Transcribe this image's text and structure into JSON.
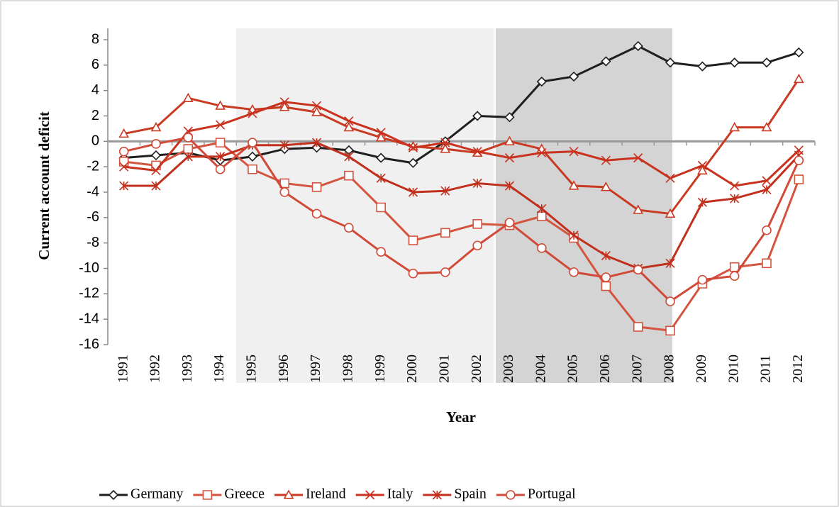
{
  "chart_data": {
    "type": "line",
    "y_axis_label": "Current account deficit",
    "x_axis_label": "Year",
    "categories": [
      "1991",
      "1992",
      "1993",
      "1994",
      "1995",
      "1996",
      "1997",
      "1998",
      "1999",
      "2000",
      "2001",
      "2002",
      "2003",
      "2004",
      "2005",
      "2006",
      "2007",
      "2008",
      "2009",
      "2010",
      "2011",
      "2012"
    ],
    "ylim": [
      -16,
      8
    ],
    "yticks": [
      -16,
      -14,
      -12,
      -10,
      -8,
      -6,
      -4,
      -2,
      0,
      2,
      4,
      6,
      8
    ],
    "grid": false,
    "legend": "bottom",
    "series": [
      {
        "name": "Germany",
        "color": "#1f1f1f",
        "marker": "diamond",
        "values": [
          -1.3,
          -1.1,
          -0.9,
          -1.5,
          -1.2,
          -0.6,
          -0.5,
          -0.7,
          -1.3,
          -1.7,
          0.0,
          2.0,
          1.9,
          4.7,
          5.1,
          6.3,
          7.5,
          6.2,
          5.9,
          6.2,
          6.2,
          7.0
        ]
      },
      {
        "name": "Greece",
        "color": "#d4553f",
        "marker": "square",
        "values": [
          -1.6,
          -1.9,
          -0.6,
          -0.1,
          -2.2,
          -3.3,
          -3.6,
          -2.7,
          -5.2,
          -7.8,
          -7.2,
          -6.5,
          -6.6,
          -5.9,
          -7.6,
          -11.4,
          -14.6,
          -14.9,
          -11.2,
          -9.9,
          -9.6,
          -3.0
        ]
      },
      {
        "name": "Ireland",
        "color": "#c93a22",
        "marker": "triangle",
        "values": [
          0.6,
          1.1,
          3.4,
          2.8,
          2.5,
          2.7,
          2.3,
          1.1,
          0.3,
          -0.4,
          -0.6,
          -0.9,
          0.0,
          -0.6,
          -3.5,
          -3.6,
          -5.4,
          -5.7,
          -2.3,
          1.1,
          1.1,
          4.9
        ]
      },
      {
        "name": "Italy",
        "color": "#c8321e",
        "marker": "x",
        "values": [
          -2.0,
          -2.3,
          0.8,
          1.3,
          2.2,
          3.1,
          2.8,
          1.6,
          0.7,
          -0.5,
          -0.1,
          -0.8,
          -1.3,
          -0.9,
          -0.8,
          -1.5,
          -1.3,
          -2.9,
          -1.9,
          -3.5,
          -3.1,
          -0.7
        ]
      },
      {
        "name": "Spain",
        "color": "#c0301c",
        "marker": "star",
        "values": [
          -3.5,
          -3.5,
          -1.2,
          -1.2,
          -0.3,
          -0.3,
          -0.1,
          -1.2,
          -2.9,
          -4.0,
          -3.9,
          -3.3,
          -3.5,
          -5.3,
          -7.4,
          -9.0,
          -10.0,
          -9.6,
          -4.8,
          -4.5,
          -3.8,
          -1.1
        ]
      },
      {
        "name": "Portugal",
        "color": "#d14a38",
        "marker": "circle",
        "values": [
          -0.8,
          -0.2,
          0.3,
          -2.2,
          -0.1,
          -4.0,
          -5.7,
          -6.8,
          -8.7,
          -10.4,
          -10.3,
          -8.2,
          -6.4,
          -8.4,
          -10.3,
          -10.7,
          -10.1,
          -12.6,
          -10.9,
          -10.6,
          -7.0,
          -1.5
        ]
      }
    ]
  }
}
